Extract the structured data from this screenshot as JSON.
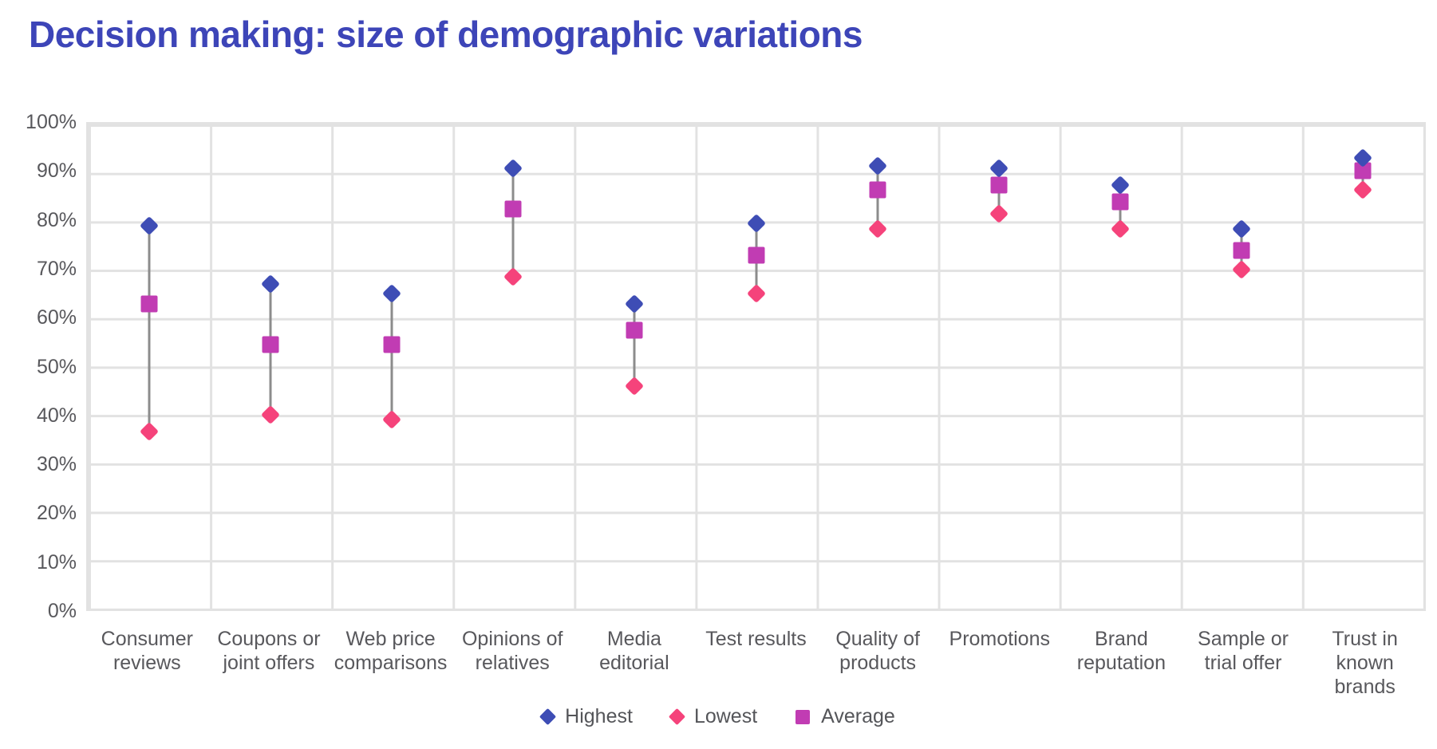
{
  "title": "Decision making: size of demographic variations",
  "colors": {
    "title": "#3d45b8",
    "highest": "#3e4db5",
    "lowest": "#f5437b",
    "average": "#c13cb3",
    "grid": "#e2e2e2",
    "axis_text": "#58585c",
    "connector": "#8c8c8c",
    "background": "#ffffff"
  },
  "chart_data": {
    "type": "scatter",
    "subtype": "range-dot-plot",
    "title": "Decision making: size of demographic variations",
    "categories": [
      "Consumer reviews",
      "Coupons or joint offers",
      "Web price comparisons",
      "Opinions of relatives",
      "Media editorial",
      "Test results",
      "Quality of products",
      "Promotions",
      "Brand reputation",
      "Sample or trial offer",
      "Trust in known brands"
    ],
    "category_label_lines": [
      [
        "Consumer",
        "reviews"
      ],
      [
        "Coupons or",
        "joint offers"
      ],
      [
        "Web price",
        "comparisons"
      ],
      [
        "Opinions of",
        "relatives"
      ],
      [
        "Media",
        "editorial"
      ],
      [
        "Test results"
      ],
      [
        "Quality of",
        "products"
      ],
      [
        "Promotions"
      ],
      [
        "Brand",
        "reputation"
      ],
      [
        "Sample or",
        "trial offer"
      ],
      [
        "Trust in",
        "known",
        "brands"
      ]
    ],
    "series": [
      {
        "name": "Highest",
        "marker": "diamond",
        "color": "#3e4db5",
        "values": [
          79,
          67,
          65,
          91,
          63,
          79.5,
          91.5,
          91,
          87.5,
          78.5,
          93
        ]
      },
      {
        "name": "Lowest",
        "marker": "diamond",
        "color": "#f5437b",
        "values": [
          36.5,
          40,
          39,
          68.5,
          46,
          65,
          78.5,
          81.5,
          78.5,
          70,
          86.5
        ]
      },
      {
        "name": "Average",
        "marker": "square",
        "color": "#c13cb3",
        "values": [
          63,
          54.5,
          54.5,
          82.5,
          57.5,
          73,
          86.5,
          87.5,
          84,
          74,
          90.5
        ]
      }
    ],
    "xlabel": "",
    "ylabel": "",
    "ylim": [
      0,
      100
    ],
    "yticks": [
      0,
      10,
      20,
      30,
      40,
      50,
      60,
      70,
      80,
      90,
      100
    ],
    "ytick_format": "percent",
    "grid": true,
    "legend_position": "bottom",
    "connector_lines": "highest-to-lowest"
  }
}
